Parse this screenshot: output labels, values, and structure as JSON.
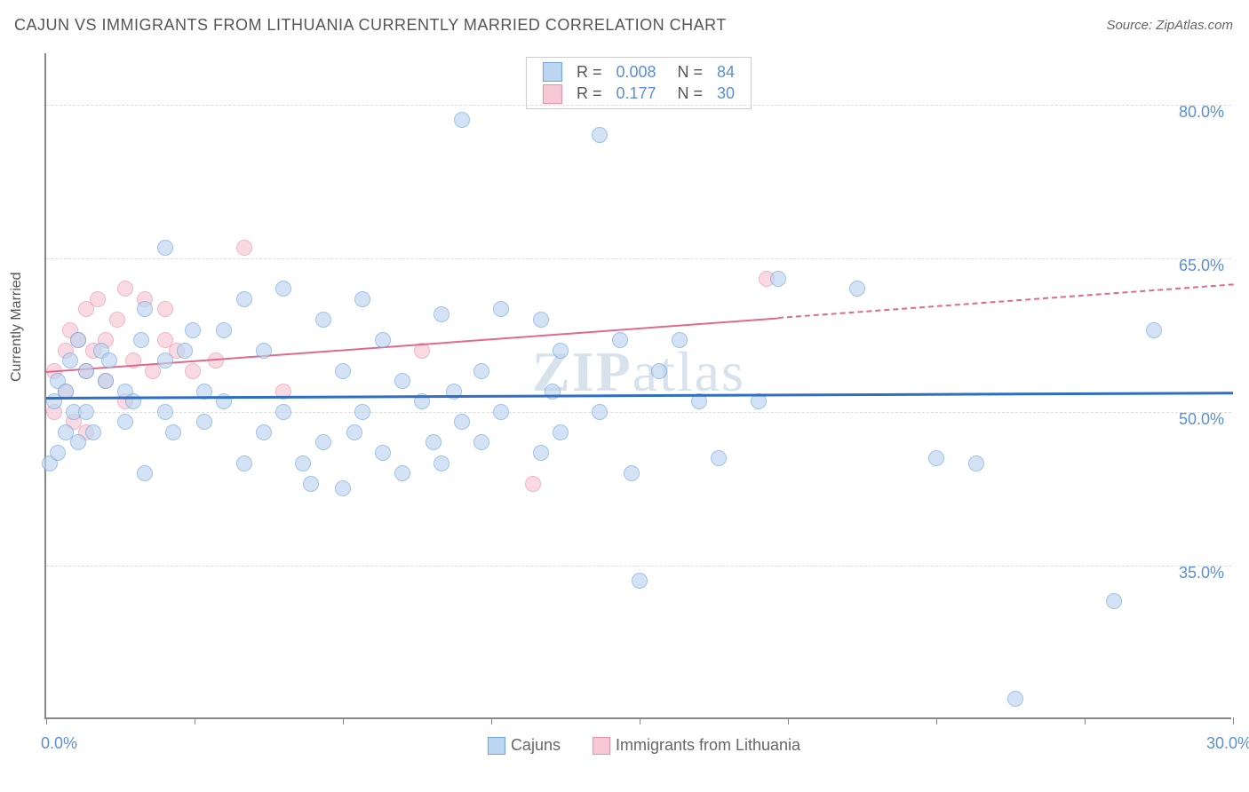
{
  "title": "CAJUN VS IMMIGRANTS FROM LITHUANIA CURRENTLY MARRIED CORRELATION CHART",
  "source": "Source: ZipAtlas.com",
  "watermark_a": "ZIP",
  "watermark_b": "atlas",
  "ylabel": "Currently Married",
  "chart": {
    "type": "scatter",
    "xlim": [
      0,
      30
    ],
    "ylim": [
      20,
      85
    ],
    "x_ticks": [
      0,
      3.75,
      7.5,
      11.25,
      15,
      18.75,
      22.5,
      26.25,
      30
    ],
    "x_tick_labels": {
      "0": "0.0%",
      "30": "30.0%"
    },
    "y_gridlines": [
      35,
      50,
      65,
      80
    ],
    "y_tick_labels": {
      "35": "35.0%",
      "50": "50.0%",
      "65": "65.0%",
      "80": "80.0%"
    },
    "background_color": "#ffffff",
    "grid_color": "#dddddd",
    "axis_color": "#888888"
  },
  "series": {
    "cajuns": {
      "label": "Cajuns",
      "fill": "#bcd5f0",
      "stroke": "#6fa3dd",
      "marker_radius": 9,
      "fill_opacity": 0.65,
      "trend": {
        "y_at_x0": 51.5,
        "y_at_x30": 52.0,
        "color": "#2f6fc3",
        "width": 3,
        "solid_until_x": 30
      },
      "points": [
        [
          0.2,
          51
        ],
        [
          0.1,
          45
        ],
        [
          0.3,
          46
        ],
        [
          0.3,
          53
        ],
        [
          0.5,
          48
        ],
        [
          0.6,
          55
        ],
        [
          0.5,
          52
        ],
        [
          0.7,
          50
        ],
        [
          0.8,
          57
        ],
        [
          0.8,
          47
        ],
        [
          1.0,
          50
        ],
        [
          1.0,
          54
        ],
        [
          1.5,
          53
        ],
        [
          1.2,
          48
        ],
        [
          1.4,
          56
        ],
        [
          1.6,
          55
        ],
        [
          2.0,
          52
        ],
        [
          2.0,
          49
        ],
        [
          2.2,
          51
        ],
        [
          2.4,
          57
        ],
        [
          2.5,
          60
        ],
        [
          2.5,
          44
        ],
        [
          3.0,
          66
        ],
        [
          3.0,
          55
        ],
        [
          3.0,
          50
        ],
        [
          3.2,
          48
        ],
        [
          3.5,
          56
        ],
        [
          3.7,
          58
        ],
        [
          4.0,
          52
        ],
        [
          4.0,
          49
        ],
        [
          4.5,
          51
        ],
        [
          4.5,
          58
        ],
        [
          5.0,
          45
        ],
        [
          5.0,
          61
        ],
        [
          5.5,
          56
        ],
        [
          5.5,
          48
        ],
        [
          6.0,
          62
        ],
        [
          6.0,
          50
        ],
        [
          6.5,
          45
        ],
        [
          6.7,
          43
        ],
        [
          7.0,
          59
        ],
        [
          7.0,
          47
        ],
        [
          7.5,
          42.5
        ],
        [
          7.5,
          54
        ],
        [
          7.8,
          48
        ],
        [
          8.0,
          61
        ],
        [
          8.0,
          50
        ],
        [
          8.5,
          46
        ],
        [
          8.5,
          57
        ],
        [
          9.0,
          53
        ],
        [
          9.0,
          44
        ],
        [
          9.5,
          51
        ],
        [
          9.8,
          47
        ],
        [
          10.0,
          45
        ],
        [
          10.0,
          59.5
        ],
        [
          10.3,
          52
        ],
        [
          10.5,
          78.5
        ],
        [
          10.5,
          49
        ],
        [
          11.0,
          54
        ],
        [
          11.0,
          47
        ],
        [
          11.5,
          50
        ],
        [
          11.5,
          60
        ],
        [
          12.5,
          59
        ],
        [
          12.5,
          46
        ],
        [
          12.8,
          52
        ],
        [
          13.0,
          56
        ],
        [
          13.0,
          48
        ],
        [
          14.0,
          77
        ],
        [
          14.0,
          50
        ],
        [
          14.5,
          57
        ],
        [
          14.8,
          44
        ],
        [
          15.0,
          33.5
        ],
        [
          15.5,
          54
        ],
        [
          16.0,
          57
        ],
        [
          16.5,
          51
        ],
        [
          17.0,
          45.5
        ],
        [
          18.0,
          51
        ],
        [
          18.5,
          63
        ],
        [
          20.5,
          62
        ],
        [
          22.5,
          45.5
        ],
        [
          23.5,
          45
        ],
        [
          24.5,
          22
        ],
        [
          27.0,
          31.5
        ],
        [
          28.0,
          58
        ]
      ]
    },
    "lithuania": {
      "label": "Immigrants from Lithuania",
      "fill": "#f6c7d4",
      "stroke": "#e791aa",
      "marker_radius": 9,
      "fill_opacity": 0.65,
      "trend": {
        "y_at_x0": 54.0,
        "y_at_x30": 62.5,
        "color": "#e06a8c",
        "width": 2,
        "solid_until_x": 18.5
      },
      "points": [
        [
          0.2,
          54
        ],
        [
          0.2,
          50
        ],
        [
          0.5,
          56
        ],
        [
          0.5,
          52
        ],
        [
          0.6,
          58
        ],
        [
          0.7,
          49
        ],
        [
          0.8,
          57
        ],
        [
          1.0,
          60
        ],
        [
          1.0,
          54
        ],
        [
          1.0,
          48
        ],
        [
          1.2,
          56
        ],
        [
          1.3,
          61
        ],
        [
          1.5,
          53
        ],
        [
          1.5,
          57
        ],
        [
          1.8,
          59
        ],
        [
          2.0,
          62
        ],
        [
          2.0,
          51
        ],
        [
          2.2,
          55
        ],
        [
          2.5,
          61
        ],
        [
          2.7,
          54
        ],
        [
          3.0,
          57
        ],
        [
          3.0,
          60
        ],
        [
          3.3,
          56
        ],
        [
          3.7,
          54
        ],
        [
          4.3,
          55
        ],
        [
          5.0,
          66
        ],
        [
          6.0,
          52
        ],
        [
          9.5,
          56
        ],
        [
          12.3,
          43
        ],
        [
          18.2,
          63
        ]
      ]
    }
  },
  "top_legend": {
    "rows": [
      {
        "swatch_fill": "#bcd5f0",
        "swatch_stroke": "#6fa3dd",
        "r_label": "R =",
        "r_val": "0.008",
        "n_label": "N =",
        "n_val": "84"
      },
      {
        "swatch_fill": "#f6c7d4",
        "swatch_stroke": "#e791aa",
        "r_label": "R =",
        "r_val": "0.177",
        "n_label": "N =",
        "n_val": "30"
      }
    ]
  }
}
